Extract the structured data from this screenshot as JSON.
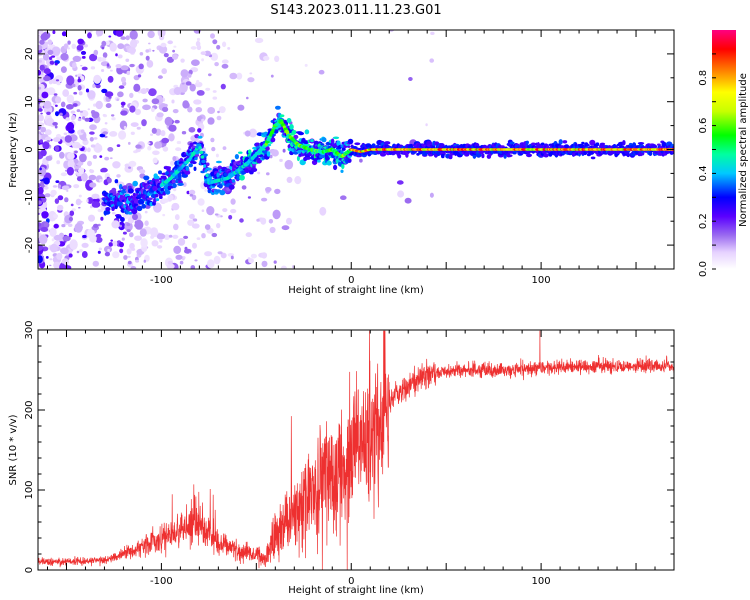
{
  "figure": {
    "title": "S143.2023.011.11.23.G01"
  },
  "chart_data": [
    {
      "type": "heatmap",
      "xlabel": "Height of straight line (km)",
      "ylabel": "Frequency (Hz)",
      "xlim": [
        -165,
        170
      ],
      "ylim": [
        -25,
        25
      ],
      "xticks": [
        -100,
        0,
        100
      ],
      "yticks": [
        -20,
        -10,
        0,
        10,
        20
      ],
      "colorbar": {
        "label": "Normalized spectral amplitude",
        "range": [
          0,
          1
        ],
        "ticks": [
          0.0,
          0.2,
          0.4,
          0.6,
          0.8
        ],
        "tick_labels": [
          "0.0",
          "0.2",
          "0.4",
          "0.6",
          "0.8"
        ],
        "colormap": [
          "#ffffff",
          "#9b6cf0",
          "#6a00ff",
          "#0000ff",
          "#00e0e0",
          "#00ff00",
          "#ffff00",
          "#ff8000",
          "#ff0000",
          "#ff0080"
        ]
      },
      "ridge": {
        "x": [
          -125,
          -115,
          -105,
          -95,
          -85,
          -80,
          -75,
          -65,
          -55,
          -45,
          -40,
          -37,
          -33,
          -28,
          -22,
          -15,
          -10,
          -5,
          0,
          5,
          10,
          20,
          40,
          60,
          80,
          100,
          120,
          140,
          160,
          170
        ],
        "y": [
          -11,
          -10,
          -9,
          -6,
          -2,
          1,
          -7,
          -6,
          -3,
          1,
          5,
          6,
          3,
          1,
          0,
          -0.5,
          0,
          -1.5,
          0,
          -0.5,
          0,
          0,
          0,
          0,
          0,
          0,
          0,
          0,
          0,
          0
        ]
      }
    },
    {
      "type": "line",
      "xlabel": "Height of straight line (km)",
      "ylabel": "SNR (10 * v/v)",
      "xlim": [
        -165,
        170
      ],
      "ylim": [
        0,
        300
      ],
      "xticks": [
        -100,
        0,
        100
      ],
      "yticks": [
        0,
        100,
        200,
        300
      ],
      "color": "#ee3030",
      "trend": {
        "x": [
          -165,
          -130,
          -120,
          -100,
          -90,
          -80,
          -70,
          -60,
          -45,
          -40,
          -30,
          -20,
          -10,
          0,
          10,
          15,
          20,
          30,
          40,
          60,
          80,
          100,
          120,
          140,
          160,
          170
        ],
        "y": [
          10,
          12,
          20,
          40,
          50,
          60,
          35,
          25,
          15,
          45,
          75,
          100,
          125,
          145,
          165,
          190,
          210,
          230,
          245,
          250,
          250,
          252,
          255,
          255,
          255,
          255
        ]
      }
    }
  ]
}
